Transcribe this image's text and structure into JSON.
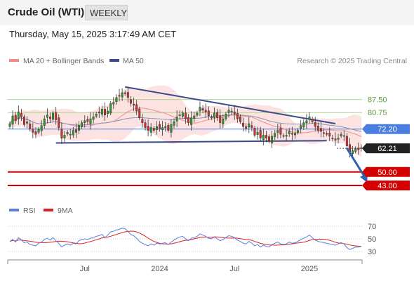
{
  "header": {
    "title": "Crude Oil (WTI)",
    "timeframe": "WEEKLY",
    "timestamp": "Thursday, May 15, 2025 3:17:49 AM CET"
  },
  "legend": {
    "ma20_bb": "MA 20 + Bollinger Bands",
    "ma50": "MA 50",
    "credit": "Research © 2025 Trading Central"
  },
  "rsi_legend": {
    "rsi": "RSI",
    "ma9": "9MA"
  },
  "colors": {
    "bull": "#2a9d2a",
    "bear": "#d32f2f",
    "ma20": "#f08a8a",
    "band": "#fde2e2",
    "ma50": "#8494b8",
    "trend": "#3b4a8c",
    "level_green": "#a8d88a",
    "level_blue": "#4a7ee0",
    "support_red": "#d60000",
    "rsi": "#5b7fe0",
    "rsi_ma": "#e02020",
    "arrow": "#2e63b0"
  },
  "chart_data": [
    {
      "type": "candlestick",
      "title": "Crude Oil (WTI)",
      "timeframe": "WEEKLY",
      "ylim": [
        39,
        99
      ],
      "x_ticks": [
        "Jul",
        "2024",
        "Jul",
        "2025"
      ],
      "x_tick_weeks": [
        26,
        52,
        78,
        104
      ],
      "total_weeks": 123,
      "price_levels": [
        {
          "value": 87.5,
          "label": "87.50",
          "style": "resistance-green"
        },
        {
          "value": 80.75,
          "label": "80.75",
          "style": "resistance-green"
        },
        {
          "value": 72.2,
          "label": "72.20",
          "style": "pivot-blue"
        },
        {
          "value": 62.21,
          "label": "62.21",
          "style": "last-price"
        },
        {
          "value": 50.0,
          "label": "50.00",
          "style": "support-red"
        },
        {
          "value": 43.0,
          "label": "43.00",
          "style": "support-red"
        }
      ],
      "trendlines": [
        {
          "from": [
            16,
            65.0
          ],
          "to": [
            110,
            66.2
          ]
        },
        {
          "from": [
            40,
            94.0
          ],
          "to": [
            113,
            75.0
          ]
        }
      ],
      "projection_arrow": {
        "from": [
          117,
          62.21
        ],
        "to": [
          124,
          44.5
        ]
      },
      "close_series": [
        75.0,
        79.0,
        76.5,
        81.0,
        78.5,
        74.5,
        76.0,
        72.5,
        70.5,
        69.5,
        72.0,
        74.0,
        77.5,
        79.5,
        77.5,
        80.5,
        77.0,
        73.0,
        67.5,
        69.0,
        70.5,
        69.5,
        71.5,
        70.5,
        74.0,
        75.5,
        76.5,
        76.0,
        77.5,
        78.5,
        80.0,
        80.5,
        82.5,
        79.5,
        81.5,
        85.5,
        86.0,
        88.5,
        89.5,
        91.0,
        90.5,
        88.5,
        85.5,
        84.5,
        81.5,
        78.0,
        75.5,
        73.0,
        71.5,
        73.0,
        71.5,
        73.5,
        72.5,
        73.0,
        73.5,
        71.5,
        74.5,
        76.0,
        78.5,
        79.5,
        80.5,
        77.5,
        75.5,
        78.0,
        79.0,
        80.5,
        83.5,
        82.0,
        81.0,
        79.0,
        78.5,
        80.5,
        78.0,
        75.5,
        77.5,
        80.0,
        82.0,
        81.5,
        80.0,
        77.5,
        76.0,
        73.5,
        72.5,
        75.0,
        73.0,
        69.0,
        70.5,
        67.5,
        69.0,
        67.5,
        66.0,
        68.5,
        70.0,
        71.5,
        69.5,
        68.5,
        69.0,
        71.0,
        69.5,
        70.0,
        71.5,
        74.0,
        75.5,
        76.5,
        78.5,
        76.0,
        73.5,
        71.5,
        71.0,
        70.0,
        69.5,
        68.5,
        67.5,
        66.5,
        67.5,
        69.5,
        68.5,
        63.5,
        60.5,
        61.0,
        62.0,
        61.5,
        62.21
      ]
    },
    {
      "type": "line",
      "title": "RSI",
      "series": [
        {
          "name": "RSI"
        },
        {
          "name": "9MA"
        }
      ],
      "ylim": [
        25,
        75
      ],
      "y_ticks": [
        70,
        50,
        30
      ],
      "rsi_values": [
        46,
        49,
        45,
        52,
        48,
        44,
        45,
        41,
        40,
        39,
        43,
        45,
        49,
        51,
        48,
        52,
        47,
        43,
        37,
        40,
        42,
        40,
        43,
        42,
        47,
        49,
        50,
        49,
        51,
        52,
        54,
        55,
        57,
        52,
        56,
        61,
        62,
        64,
        65,
        67,
        66,
        62,
        57,
        55,
        51,
        46,
        43,
        41,
        39,
        42,
        40,
        43,
        42,
        43,
        44,
        41,
        45,
        48,
        51,
        53,
        54,
        50,
        47,
        51,
        52,
        54,
        58,
        56,
        54,
        51,
        50,
        53,
        50,
        47,
        49,
        52,
        55,
        54,
        52,
        48,
        46,
        43,
        42,
        46,
        43,
        39,
        41,
        37,
        40,
        38,
        37,
        41,
        43,
        45,
        42,
        41,
        42,
        45,
        43,
        44,
        46,
        49,
        51,
        53,
        56,
        52,
        48,
        46,
        45,
        44,
        43,
        42,
        41,
        40,
        42,
        44,
        42,
        36,
        33,
        35,
        37,
        37,
        38
      ]
    }
  ]
}
